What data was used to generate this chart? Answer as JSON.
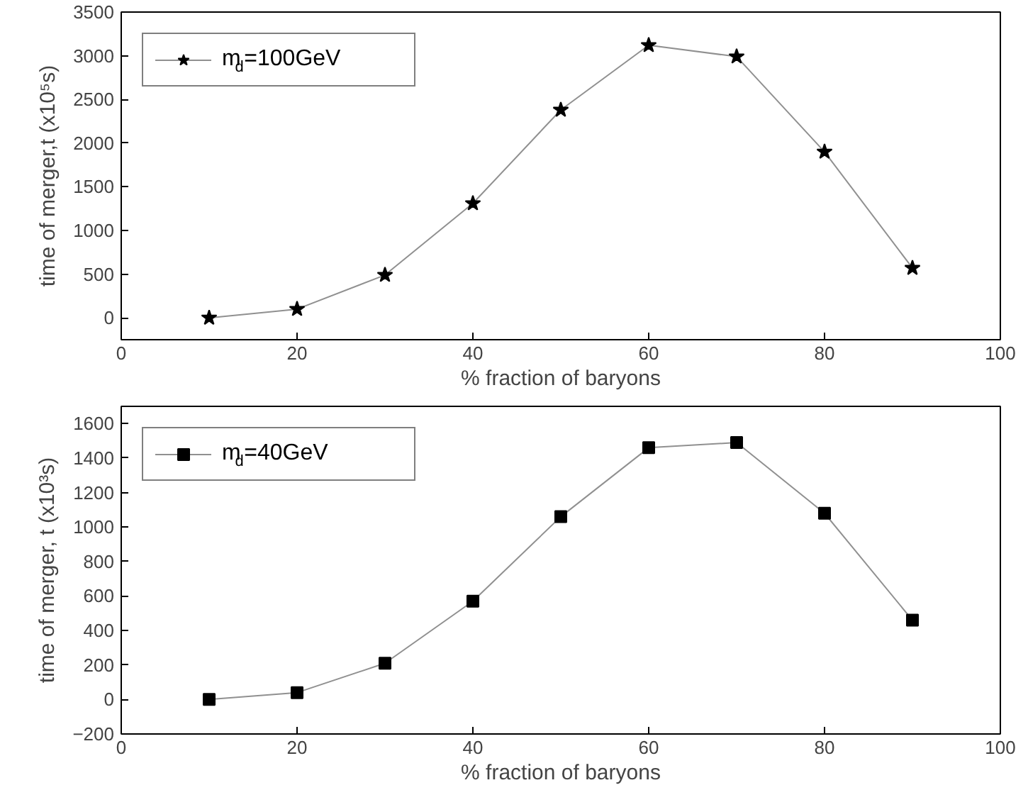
{
  "chart_data": [
    {
      "type": "line",
      "xlabel": "% fraction of baryons",
      "ylabel": "time of merger,t (x10⁵s)",
      "x": [
        10,
        20,
        30,
        40,
        50,
        60,
        70,
        80,
        90
      ],
      "series": [
        {
          "name": "m$_{d}$=100GeV",
          "color": "#000000",
          "values": [
            0,
            100,
            490,
            1310,
            2380,
            3120,
            2990,
            1900,
            570
          ]
        }
      ],
      "xlim": [
        0,
        100
      ],
      "xticks": [
        0,
        20,
        40,
        60,
        80,
        100
      ],
      "ylim": [
        -250,
        3500
      ],
      "yticks": [
        0,
        500,
        1000,
        1500,
        2000,
        2500,
        3000,
        3500
      ],
      "marker": "star",
      "legend": "top left",
      "grid": false
    },
    {
      "type": "line",
      "xlabel": "% fraction of baryons",
      "ylabel": "time of merger, t (x10³s)",
      "x": [
        10,
        20,
        30,
        40,
        50,
        60,
        70,
        80,
        90
      ],
      "series": [
        {
          "name": "m$_{d}$=40GeV",
          "color": "#000000",
          "values": [
            0,
            40,
            210,
            570,
            1060,
            1460,
            1490,
            1080,
            460
          ]
        }
      ],
      "xlim": [
        0,
        100
      ],
      "xticks": [
        0,
        20,
        40,
        60,
        80,
        100
      ],
      "ylim": [
        -200,
        1700
      ],
      "yticks": [
        -200,
        0,
        200,
        400,
        600,
        800,
        1000,
        1200,
        1400,
        1600
      ],
      "marker": "square",
      "legend": "top left",
      "grid": false
    }
  ]
}
